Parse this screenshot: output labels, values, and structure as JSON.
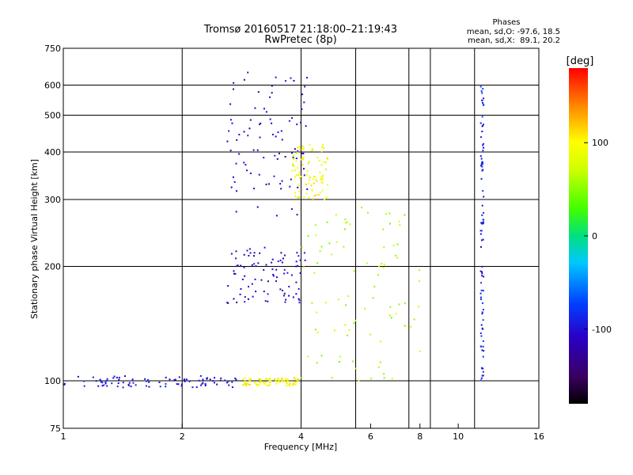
{
  "chart_data": {
    "type": "scatter",
    "title": "Tromsø 20160517 21:18:00–21:19:43",
    "subtitle": "RwPretec (8p)",
    "xlabel": "Frequency [MHz]",
    "ylabel": "Stationary phase Virtual Height [km]",
    "x_scale": "log",
    "y_scale": "log",
    "xlim": [
      1,
      16
    ],
    "ylim": [
      75,
      750
    ],
    "x_ticks": [
      1,
      2,
      4,
      6,
      8,
      10,
      16
    ],
    "x_tick_labels": [
      "1",
      "2",
      "4",
      "6",
      "8",
      "10",
      "16"
    ],
    "x_grid_lines": [
      1,
      2,
      4,
      5.5,
      7.5,
      8.5,
      11
    ],
    "y_ticks": [
      75,
      100,
      200,
      300,
      400,
      500,
      600,
      750
    ],
    "y_tick_labels": [
      "75",
      "100",
      "200",
      "300",
      "400",
      "500",
      "600",
      "750"
    ],
    "y_grid_lines": [
      100,
      200,
      300,
      400,
      500,
      600
    ],
    "grid": true,
    "stats": {
      "title": "Phases",
      "line_o": "mean, sd,O: -97.6, 18.5",
      "line_x": "mean, sd,X:  89.1, 20.2"
    },
    "colorbar": {
      "label": "[deg]",
      "range": [
        -180,
        180
      ],
      "ticks": [
        100,
        0,
        -100
      ],
      "tick_labels": [
        "100",
        "0",
        "-100"
      ],
      "colormap": "rainbow"
    },
    "clusters": [
      {
        "name": "E-region trace",
        "freq_range": [
          1.0,
          2.75
        ],
        "height_range": [
          96,
          103
        ],
        "phase": -100
      },
      {
        "name": "E trace O-mode end",
        "freq_range": [
          2.85,
          3.95
        ],
        "height_range": [
          97,
          102
        ],
        "phase": 100
      },
      {
        "name": "F1 trace O-mode",
        "freq_range": [
          2.6,
          4.1
        ],
        "height_range": [
          160,
          225
        ],
        "phase": -110
      },
      {
        "name": "F2 trace O-mode",
        "freq_range": [
          2.6,
          4.2
        ],
        "height_range": [
          270,
          650
        ],
        "phase": -110
      },
      {
        "name": "F2 trace X-mode",
        "freq_range": [
          3.8,
          4.7
        ],
        "height_range": [
          300,
          420
        ],
        "phase": 95
      },
      {
        "name": "Spread echoes",
        "freq_range": [
          4.0,
          8.0
        ],
        "height_range": [
          100,
          290
        ],
        "phase": 60
      },
      {
        "name": "Column at 11.5 MHz",
        "freq_range": [
          11.4,
          11.6
        ],
        "height_range": [
          100,
          610
        ],
        "phase": -90
      }
    ]
  }
}
